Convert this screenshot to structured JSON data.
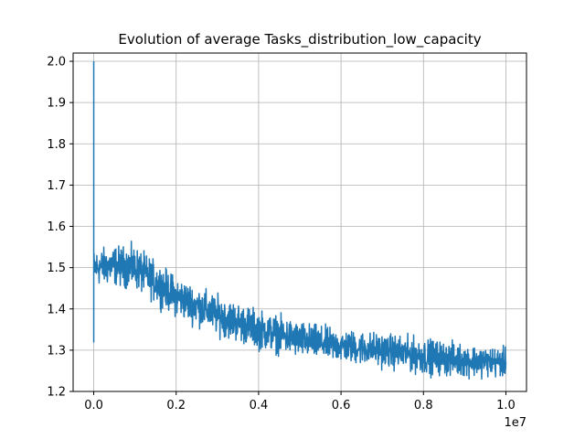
{
  "chart_data": {
    "type": "line",
    "title": "Evolution of average Tasks_distribution_low_capacity",
    "xlabel": "",
    "ylabel": "",
    "x_offset_label": "1e7",
    "x_scale_factor": 10000000,
    "xlim": [
      -0.05,
      1.05
    ],
    "ylim": [
      1.2,
      2.02
    ],
    "x_ticks": [
      0.0,
      0.2,
      0.4,
      0.6,
      0.8,
      1.0
    ],
    "x_tick_labels": [
      "0.0",
      "0.2",
      "0.4",
      "0.6",
      "0.8",
      "1.0"
    ],
    "y_ticks": [
      1.2,
      1.3,
      1.4,
      1.5,
      1.6,
      1.7,
      1.8,
      1.9,
      2.0
    ],
    "y_tick_labels": [
      "1.2",
      "1.3",
      "1.4",
      "1.5",
      "1.6",
      "1.7",
      "1.8",
      "1.9",
      "2.0"
    ],
    "grid": true,
    "legend": "none",
    "line_color": "#1f77b4",
    "series": [
      {
        "initial_points": [
          {
            "x": 0.0,
            "y": 2.0
          },
          {
            "x": 0.0,
            "y": 1.32
          },
          {
            "x": 0.0,
            "y": 1.55
          },
          {
            "x": 0.0,
            "y": 1.46
          }
        ],
        "x_range": [
          0.0,
          1.0
        ],
        "mean_curve": [
          {
            "x": 0.0,
            "y": 1.5
          },
          {
            "x": 0.05,
            "y": 1.505
          },
          {
            "x": 0.1,
            "y": 1.5
          },
          {
            "x": 0.15,
            "y": 1.465
          },
          {
            "x": 0.2,
            "y": 1.43
          },
          {
            "x": 0.3,
            "y": 1.385
          },
          {
            "x": 0.4,
            "y": 1.35
          },
          {
            "x": 0.5,
            "y": 1.325
          },
          {
            "x": 0.6,
            "y": 1.31
          },
          {
            "x": 0.7,
            "y": 1.3
          },
          {
            "x": 0.8,
            "y": 1.285
          },
          {
            "x": 0.9,
            "y": 1.275
          },
          {
            "x": 1.0,
            "y": 1.27
          }
        ],
        "noise_band": [
          {
            "x": 0.0,
            "low": 1.45,
            "high": 1.56
          },
          {
            "x": 0.1,
            "low": 1.44,
            "high": 1.57
          },
          {
            "x": 0.2,
            "low": 1.36,
            "high": 1.48
          },
          {
            "x": 0.4,
            "low": 1.29,
            "high": 1.41
          },
          {
            "x": 0.6,
            "low": 1.26,
            "high": 1.36
          },
          {
            "x": 0.8,
            "low": 1.23,
            "high": 1.34
          },
          {
            "x": 1.0,
            "low": 1.23,
            "high": 1.32
          }
        ]
      }
    ]
  }
}
